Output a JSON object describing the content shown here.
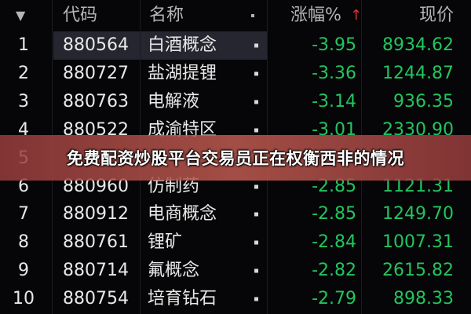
{
  "header": {
    "sort_icon": "▼",
    "columns": [
      "代码",
      "名称",
      "涨幅%",
      "现价"
    ],
    "sort_arrow": "↑"
  },
  "table": {
    "rows": [
      [
        "1",
        "880564",
        "白酒概念",
        "-3.95",
        "8934.62"
      ],
      [
        "2",
        "880727",
        "盐湖提锂",
        "-3.36",
        "1244.87"
      ],
      [
        "3",
        "880763",
        "电解液",
        "-3.14",
        "936.35"
      ],
      [
        "4",
        "880522",
        "成渝特区",
        "-3.01",
        "2330.90"
      ],
      [
        "5"
      ],
      [
        "6",
        "880960",
        "仿制药",
        "-2.85",
        "1121.31"
      ],
      [
        "7",
        "880912",
        "电商概念",
        "-2.85",
        "1249.70"
      ],
      [
        "8",
        "880761",
        "锂矿",
        "-2.84",
        "1007.31"
      ],
      [
        "9",
        "880714",
        "氟概念",
        "-2.82",
        "2615.82"
      ],
      [
        "10",
        "880754",
        "培育钻石",
        "-2.79",
        "898.33"
      ]
    ]
  },
  "banner": {
    "text": "免费配资炒股平台交易员正在权衡西非的情况"
  }
}
